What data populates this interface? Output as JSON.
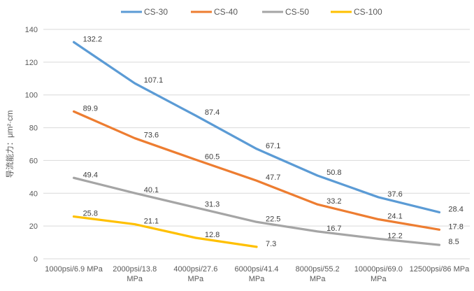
{
  "chart_data": {
    "type": "line",
    "title": "",
    "xlabel": "",
    "ylabel": "导流能力：μm²·cm",
    "grid": true,
    "legend": {
      "position": "top",
      "entries": [
        "CS-30",
        "CS-40",
        "CS-50",
        "CS-100"
      ]
    },
    "y_axis": {
      "min": 0,
      "max": 140,
      "step": 20,
      "tick_labels": [
        "0",
        "20",
        "40",
        "60",
        "80",
        "100",
        "120",
        "140"
      ]
    },
    "categories": [
      "1000psi/6.9 MPa",
      "2000psi/13.8 MPa",
      "4000psi/27.6 MPa",
      "6000psi/41.4 MPa",
      "8000psi/55.2 MPa",
      "10000psi/69.0 MPa",
      "12500psi/86 MPa"
    ],
    "category_label_lines": [
      [
        "1000psi/6.9 MPa"
      ],
      [
        "2000psi/13.8",
        "MPa"
      ],
      [
        "4000psi/27.6",
        "MPa"
      ],
      [
        "6000psi/41.4",
        "MPa"
      ],
      [
        "8000psi/55.2",
        "MPa"
      ],
      [
        "10000psi/69.0",
        "MPa"
      ],
      [
        "12500psi/86 MPa"
      ]
    ],
    "series": [
      {
        "name": "CS-30",
        "color": "#5B9BD5",
        "values": [
          132.2,
          107.1,
          87.4,
          67.1,
          50.8,
          37.6,
          28.4
        ]
      },
      {
        "name": "CS-40",
        "color": "#ED7D31",
        "values": [
          89.9,
          73.6,
          60.5,
          47.7,
          33.2,
          24.1,
          17.8
        ]
      },
      {
        "name": "CS-50",
        "color": "#A5A5A5",
        "values": [
          49.4,
          40.1,
          31.3,
          22.5,
          16.7,
          12.2,
          8.5
        ]
      },
      {
        "name": "CS-100",
        "color": "#FFC000",
        "values": [
          25.8,
          21.1,
          12.8,
          7.3
        ]
      }
    ],
    "colors": {
      "background": "#FFFFFF",
      "gridline": "#D9D9D9",
      "axis_line": "#D9D9D9",
      "tick_label": "#595959",
      "data_label": "#404040",
      "legend_label": "#595959"
    }
  }
}
